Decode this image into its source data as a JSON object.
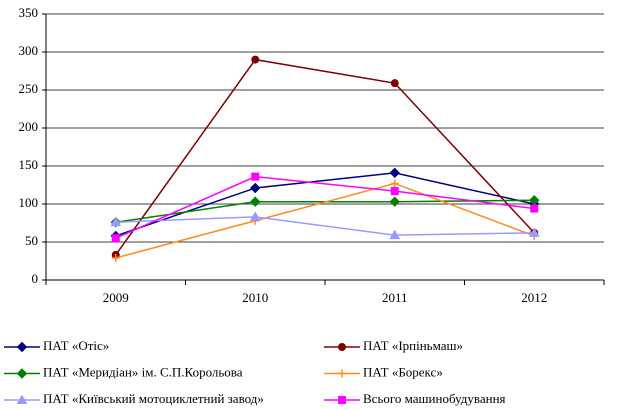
{
  "chart_data": {
    "type": "line",
    "categories": [
      "2009",
      "2010",
      "2011",
      "2012"
    ],
    "series": [
      {
        "name": "ПАТ «Отіс»",
        "color": "#000080",
        "marker": "diamond",
        "values": [
          58,
          121,
          141,
          100
        ]
      },
      {
        "name": "ПАТ «Ірпіньмаш»",
        "color": "#800000",
        "marker": "circle",
        "values": [
          33,
          290,
          259,
          62
        ]
      },
      {
        "name": "ПАТ «Меридіан» ім. С.П.Корольова",
        "color": "#008000",
        "marker": "diamond",
        "values": [
          76,
          103,
          103,
          105
        ]
      },
      {
        "name": "ПАТ «Борекс»",
        "color": "#FF8C1A",
        "marker": "plus",
        "values": [
          29,
          78,
          127,
          58
        ]
      },
      {
        "name": "ПАТ «Київський мотоциклетний завод»",
        "color": "#9999FF",
        "marker": "triangle",
        "values": [
          76,
          83,
          59,
          62
        ]
      },
      {
        "name": "Всього машинобудування",
        "color": "#FF00FF",
        "marker": "square",
        "values": [
          55,
          136,
          117,
          94
        ]
      }
    ],
    "ylim": [
      0,
      350
    ],
    "yticks": [
      0,
      50,
      100,
      150,
      200,
      250,
      300,
      350
    ],
    "grid": true,
    "legend": "bottom"
  }
}
